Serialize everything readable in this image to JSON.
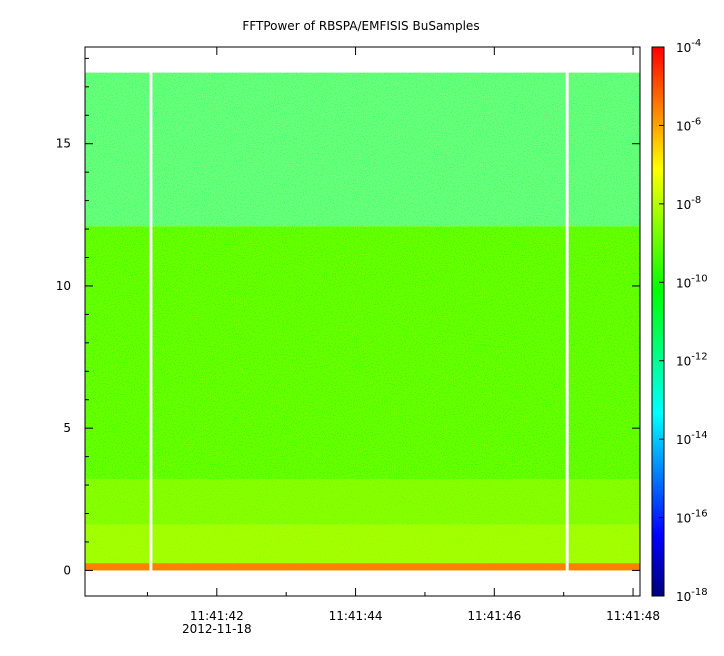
{
  "chart_data": {
    "type": "heatmap",
    "title": "FFTPower of RBSPA/EMFISIS  BuSamples",
    "xlabel": "",
    "ylabel": "",
    "x_ticks": [
      "11:41:42",
      "11:41:44",
      "11:41:46",
      "11:41:48"
    ],
    "x_tick_seconds": [
      42,
      44,
      46,
      48
    ],
    "x_date_label": "2012-11-18",
    "xlim_seconds": [
      40.1,
      48.1
    ],
    "y_ticks": [
      0,
      5,
      10,
      15
    ],
    "ylim": [
      -0.9,
      18.4
    ],
    "data_ymax": 17.5,
    "gaps_seconds": [
      41.05,
      47.05
    ],
    "colorbar": {
      "scale": "log",
      "range": [
        1e-18,
        0.0001
      ],
      "tick_exponents": [
        -4,
        -6,
        -8,
        -10,
        -12,
        -14,
        -16,
        -18
      ],
      "tick_base": "10"
    },
    "bands": [
      {
        "y": [
          12.1,
          17.5
        ],
        "log_power": -11.8
      },
      {
        "y": [
          3.2,
          12.1
        ],
        "log_power": -10.4
      },
      {
        "y": [
          1.6,
          3.2
        ],
        "log_power": -9.0
      },
      {
        "y": [
          0.0,
          1.6
        ],
        "log_power": -8.5
      }
    ],
    "colors": {
      "c0": "#00007f",
      "c1": "#0000ff",
      "c2": "#007fff",
      "c3": "#00ffff",
      "c4": "#00ff7f",
      "c5": "#00ff00",
      "c6": "#7fff00",
      "c7": "#ffff00",
      "c8": "#ff7f00",
      "c9": "#ff0000"
    }
  }
}
